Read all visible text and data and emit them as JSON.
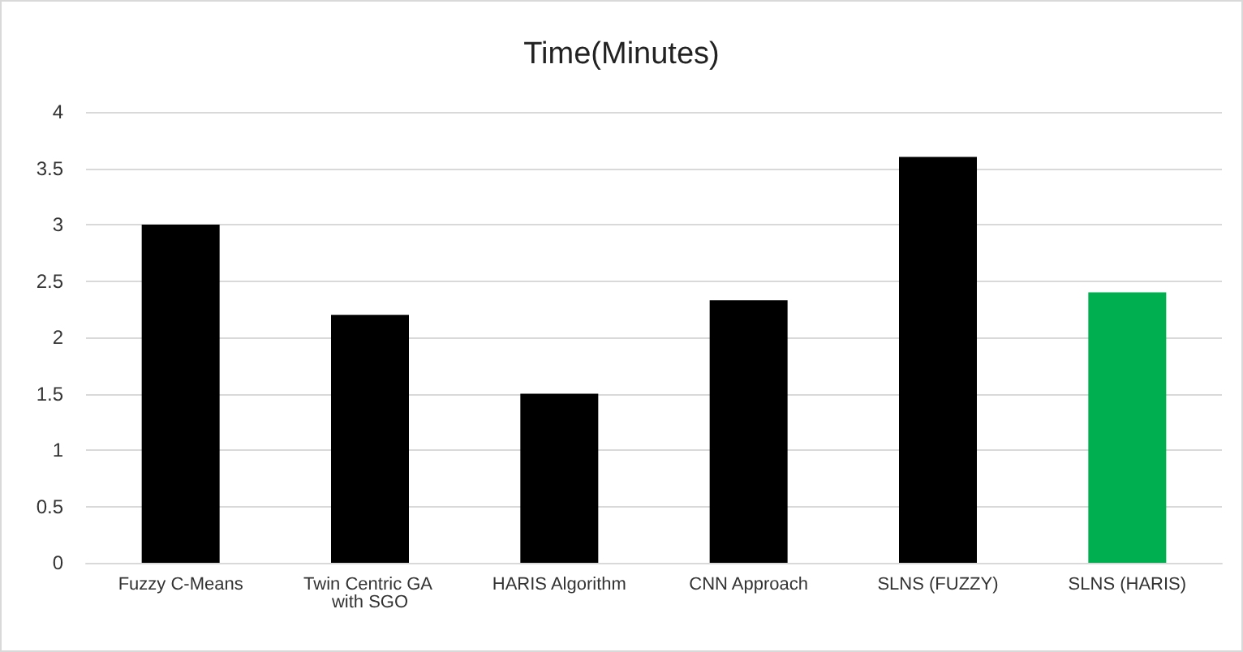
{
  "chart_data": {
    "type": "bar",
    "title": "Time(Minutes)",
    "categories": [
      "Fuzzy C-Means",
      "Twin Centric GA with SGO",
      "HARIS Algorithm",
      "CNN Approach",
      "SLNS (FUZZY)",
      "SLNS (HARIS)"
    ],
    "values": [
      3.0,
      2.2,
      1.5,
      2.33,
      3.6,
      2.4
    ],
    "colors": [
      "#000000",
      "#000000",
      "#000000",
      "#000000",
      "#000000",
      "#00b050"
    ],
    "ylim": [
      0,
      4
    ],
    "yticks": [
      0,
      0.5,
      1,
      1.5,
      2,
      2.5,
      3,
      3.5,
      4
    ],
    "grid": "y"
  }
}
